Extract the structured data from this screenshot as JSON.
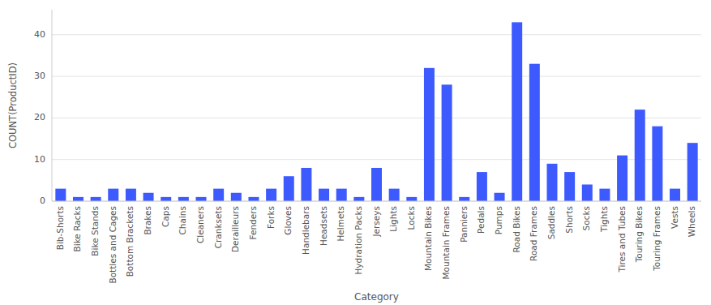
{
  "chart_data": {
    "type": "bar",
    "categories": [
      "Bib-Shorts",
      "Bike Racks",
      "Bike Stands",
      "Bottles and Cages",
      "Bottom Brackets",
      "Brakes",
      "Caps",
      "Chains",
      "Cleaners",
      "Cranksets",
      "Derailleurs",
      "Fenders",
      "Forks",
      "Gloves",
      "Handlebars",
      "Headsets",
      "Helmets",
      "Hydration Packs",
      "Jerseys",
      "Lights",
      "Locks",
      "Mountain Bikes",
      "Mountain Frames",
      "Panniers",
      "Pedals",
      "Pumps",
      "Road Bikes",
      "Road Frames",
      "Saddles",
      "Shorts",
      "Socks",
      "Tights",
      "Tires and Tubes",
      "Touring Bikes",
      "Touring Frames",
      "Vests",
      "Wheels"
    ],
    "values": [
      3,
      1,
      1,
      3,
      3,
      2,
      1,
      1,
      1,
      3,
      2,
      1,
      3,
      6,
      8,
      3,
      3,
      1,
      8,
      3,
      1,
      32,
      28,
      1,
      7,
      2,
      43,
      33,
      9,
      7,
      4,
      3,
      11,
      22,
      18,
      3,
      14
    ],
    "color": "#3d5aff",
    "xlabel": "Category",
    "ylabel": "COUNT(ProductID)",
    "ylim": [
      0,
      46
    ],
    "yticks": [
      0,
      10,
      20,
      30,
      40
    ],
    "grid": true
  }
}
